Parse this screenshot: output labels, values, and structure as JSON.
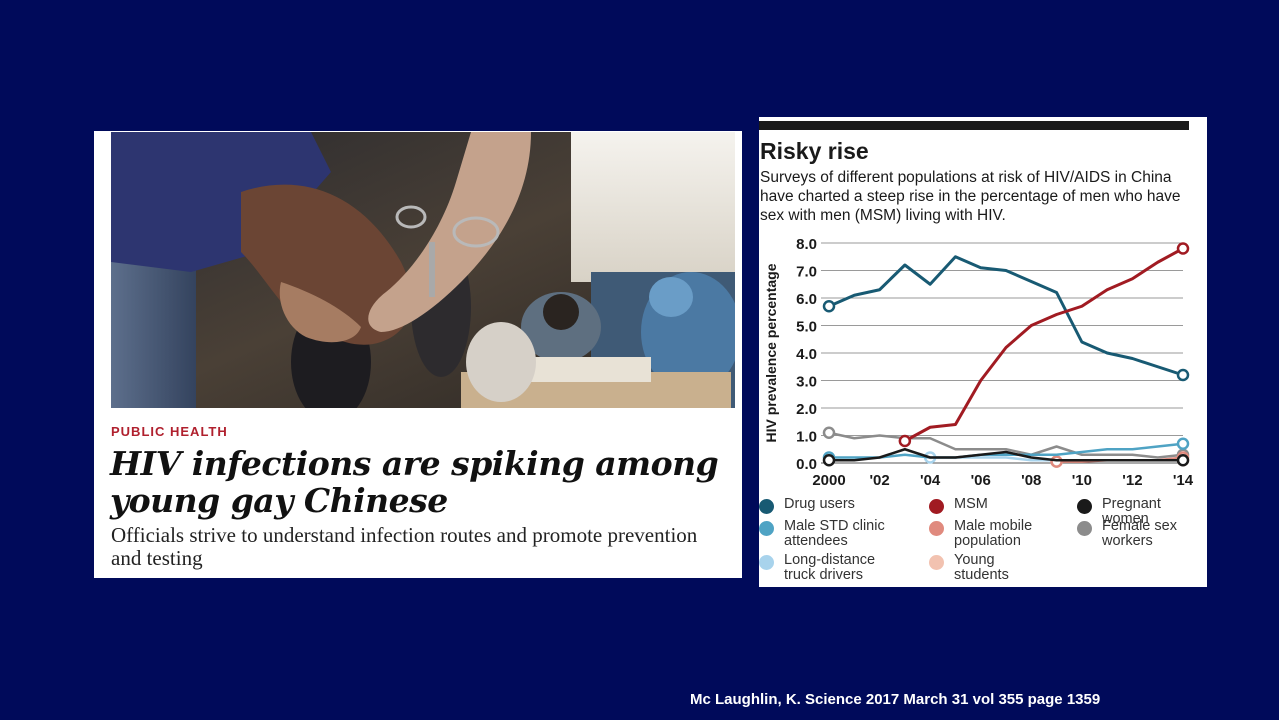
{
  "article": {
    "section": "PUBLIC HEALTH",
    "headline": "HIV infections are spiking among young gay Chinese",
    "deck": "Officials strive to understand infection routes and promote prevention and testing"
  },
  "citation": "Mc Laughlin, K. Science 2017 March 31 vol 355 page 1359",
  "figure": {
    "title": "Risky rise",
    "subtitle": "Surveys of different populations at risk of HIV/AIDS in China have charted a steep rise in the percentage of men who have sex with men (MSM) living with HIV."
  },
  "colors": {
    "background": "#000a5a",
    "drug_users": "#185a73",
    "msm": "#a11b22",
    "pregnant_women": "#1a1a1a",
    "male_std": "#4fa3c4",
    "male_mobile": "#e08a7e",
    "female_sex_workers": "#8c8c8c",
    "truck_drivers": "#a8d3ec",
    "young_students": "#f2c2b0"
  },
  "chart_data": {
    "type": "line",
    "title": "Risky rise",
    "ylabel": "HIV prevalence percentage",
    "xlabel": "",
    "ylim": [
      0,
      8
    ],
    "xlim": [
      2000,
      2014
    ],
    "yticks": [
      "0.0",
      "1.0",
      "2.0",
      "3.0",
      "4.0",
      "5.0",
      "6.0",
      "7.0",
      "8.0"
    ],
    "xticks": [
      {
        "x": 2000,
        "label": "2000"
      },
      {
        "x": 2002,
        "label": "'02"
      },
      {
        "x": 2004,
        "label": "'04"
      },
      {
        "x": 2006,
        "label": "'06"
      },
      {
        "x": 2008,
        "label": "'08"
      },
      {
        "x": 2010,
        "label": "'10"
      },
      {
        "x": 2012,
        "label": "'12"
      },
      {
        "x": 2014,
        "label": "'14"
      }
    ],
    "grid": true,
    "legend_position": "bottom",
    "series": [
      {
        "key": "drug_users",
        "name": "Drug users",
        "color": "#185a73",
        "x": [
          2000,
          2001,
          2002,
          2003,
          2004,
          2005,
          2006,
          2007,
          2008,
          2009,
          2010,
          2011,
          2012,
          2013,
          2014
        ],
        "y": [
          5.7,
          6.1,
          6.3,
          7.2,
          6.5,
          7.5,
          7.1,
          7.0,
          6.6,
          6.2,
          4.4,
          4.0,
          3.8,
          3.5,
          3.2
        ],
        "markers": [
          2000,
          2014
        ]
      },
      {
        "key": "msm",
        "name": "MSM",
        "color": "#a11b22",
        "x": [
          2003,
          2004,
          2005,
          2006,
          2007,
          2008,
          2009,
          2010,
          2011,
          2012,
          2013,
          2014
        ],
        "y": [
          0.8,
          1.3,
          1.4,
          3.0,
          4.2,
          5.0,
          5.4,
          5.7,
          6.3,
          6.7,
          7.3,
          7.8
        ],
        "markers": [
          2003,
          2014
        ]
      },
      {
        "key": "pregnant_women",
        "name": "Pregnant women",
        "color": "#1a1a1a",
        "x": [
          2000,
          2001,
          2002,
          2003,
          2004,
          2005,
          2006,
          2007,
          2008,
          2009,
          2010,
          2011,
          2012,
          2013,
          2014
        ],
        "y": [
          0.1,
          0.1,
          0.2,
          0.5,
          0.2,
          0.2,
          0.3,
          0.4,
          0.2,
          0.1,
          0.1,
          0.1,
          0.1,
          0.1,
          0.1
        ],
        "markers": [
          2000,
          2014
        ]
      },
      {
        "key": "male_std",
        "name": "Male STD clinic attendees",
        "color": "#4fa3c4",
        "x": [
          2000,
          2001,
          2002,
          2003,
          2004,
          2005,
          2006,
          2007,
          2008,
          2009,
          2010,
          2011,
          2012,
          2013,
          2014
        ],
        "y": [
          0.2,
          0.2,
          0.2,
          0.3,
          0.2,
          0.2,
          0.3,
          0.3,
          0.3,
          0.3,
          0.4,
          0.5,
          0.5,
          0.6,
          0.7
        ],
        "markers": [
          2000,
          2014
        ]
      },
      {
        "key": "male_mobile",
        "name": "Male mobile population",
        "color": "#e08a7e",
        "x": [
          2009,
          2010,
          2011,
          2012,
          2013,
          2014
        ],
        "y": [
          0.05,
          0.05,
          0.1,
          0.1,
          0.1,
          0.2
        ],
        "markers": [
          2009,
          2014
        ]
      },
      {
        "key": "female_sex_workers",
        "name": "Female sex workers",
        "color": "#8c8c8c",
        "x": [
          2000,
          2001,
          2002,
          2003,
          2004,
          2005,
          2006,
          2007,
          2008,
          2009,
          2010,
          2011,
          2012,
          2013,
          2014
        ],
        "y": [
          1.1,
          0.9,
          1.0,
          0.9,
          0.9,
          0.5,
          0.5,
          0.5,
          0.3,
          0.6,
          0.3,
          0.3,
          0.3,
          0.2,
          0.3
        ],
        "markers": [
          2000,
          2014
        ]
      },
      {
        "key": "truck_drivers",
        "name": "Long-distance truck drivers",
        "color": "#a8d3ec",
        "x": [
          2004,
          2005,
          2006,
          2007,
          2008,
          2009,
          2010
        ],
        "y": [
          0.2,
          0.2,
          0.2,
          0.2,
          0.1,
          0.1,
          0.1
        ],
        "markers": [
          2004
        ]
      },
      {
        "key": "young_students",
        "name": "Young students",
        "color": "#f2c2b0",
        "x": [
          2009,
          2010,
          2011,
          2012,
          2013,
          2014
        ],
        "y": [
          0.05,
          0.1,
          0.1,
          0.1,
          0.1,
          0.1
        ],
        "markers": [
          2009,
          2014
        ]
      }
    ]
  },
  "legend": [
    {
      "key": "drug_users",
      "lines": [
        "Drug users"
      ]
    },
    {
      "key": "msm",
      "lines": [
        "MSM"
      ]
    },
    {
      "key": "pregnant_women",
      "lines": [
        "Pregnant",
        "women"
      ]
    },
    {
      "key": "male_std",
      "lines": [
        "Male STD clinic",
        "attendees"
      ]
    },
    {
      "key": "male_mobile",
      "lines": [
        "Male mobile",
        "population"
      ]
    },
    {
      "key": "female_sex_workers",
      "lines": [
        "Female sex",
        "workers"
      ]
    },
    {
      "key": "truck_drivers",
      "lines": [
        "Long-distance",
        "truck drivers"
      ]
    },
    {
      "key": "young_students",
      "lines": [
        "Young",
        "students"
      ]
    }
  ]
}
